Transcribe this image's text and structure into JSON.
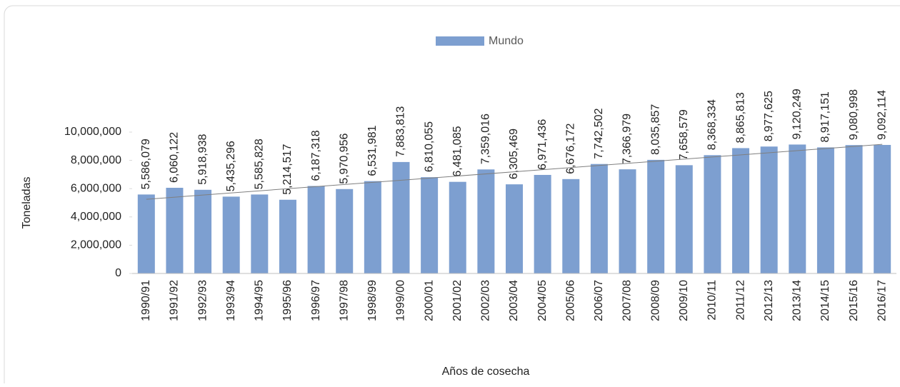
{
  "chart_data": {
    "type": "bar",
    "x_label": "Años de cosecha",
    "y_label": "Toneladas",
    "categories": [
      "1990/91",
      "1991/92",
      "1992/93",
      "1993/94",
      "1994/95",
      "1995/96",
      "1996/97",
      "1997/98",
      "1998/99",
      "1999/00",
      "2000/01",
      "2001/02",
      "2002/03",
      "2003/04",
      "2004/05",
      "2005/06",
      "2006/07",
      "2007/08",
      "2008/09",
      "2009/10",
      "2010/11",
      "2011/12",
      "2012/13",
      "2013/14",
      "2014/15",
      "2015/16",
      "2016/17"
    ],
    "series": [
      {
        "name": "Mundo",
        "color": "#7d9fd0",
        "values": [
          5586079,
          6060122,
          5918938,
          5435296,
          5585828,
          5214517,
          6187318,
          5970956,
          6531981,
          7883813,
          6810055,
          6481085,
          7359016,
          6305469,
          6971436,
          6676172,
          7742502,
          7366979,
          8035857,
          7658579,
          8368334,
          8865813,
          8977625,
          9120249,
          8917151,
          9080998,
          9092114
        ],
        "value_labels": [
          "5,586,079",
          "6,060,122",
          "5,918,938",
          "5,435,296",
          "5,585,828",
          "5,214,517",
          "6,187,318",
          "5,970,956",
          "6,531,981",
          "7,883,813",
          "6,810,055",
          "6,481,085",
          "7,359,016",
          "6,305,469",
          "6,971,436",
          "6,676,172",
          "7,742,502",
          "7,366,979",
          "8,035,857",
          "7,658,579",
          "8,368,334",
          "8,865,813",
          "8,977,625",
          "9,120,249",
          "8,917,151",
          "9,080,998",
          "9,092,114"
        ]
      }
    ],
    "ylim": [
      0,
      10000000
    ],
    "yticks": [
      0,
      {
        "value": 2000000,
        "label": "2,000,000"
      },
      {
        "value": 4000000,
        "label": "4,000,000"
      },
      {
        "value": 6000000,
        "label": "6,000,000"
      },
      {
        "value": 8000000,
        "label": "8,000,000"
      },
      {
        "value": 10000000,
        "label": "10,000,000"
      }
    ],
    "grid": false,
    "legend": "top",
    "trendline": "linear"
  }
}
